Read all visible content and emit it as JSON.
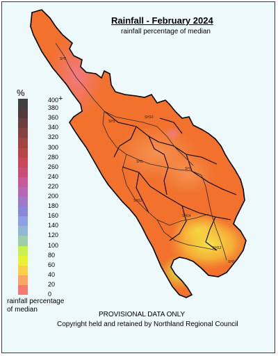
{
  "title": "Rainfall - February 2024",
  "subtitle": "rainfall percentage of median",
  "legend": {
    "unit": "%",
    "max_suffix": "+",
    "ticks": [
      "400",
      "380",
      "360",
      "340",
      "320",
      "300",
      "280",
      "260",
      "240",
      "220",
      "200",
      "180",
      "160",
      "140",
      "120",
      "100",
      "80",
      "60",
      "40",
      "20",
      "0"
    ],
    "label_line1": "rainfall percentage",
    "label_line2": "of median",
    "colors": [
      "#404040",
      "#503b3b",
      "#6a3f3f",
      "#844342",
      "#a04343",
      "#b94646",
      "#c9465a",
      "#cc4c78",
      "#c65a96",
      "#b567b6",
      "#9e77c9",
      "#8a88d6",
      "#8ea0e2",
      "#92b7d5",
      "#9ccfa9",
      "#c9ef53",
      "#e8f133",
      "#fbcf48",
      "#f8a566",
      "#f67b6f"
    ]
  },
  "road_labels": [
    "SH1",
    "SH10",
    "SH1",
    "SH1",
    "SH12",
    "SH14",
    "SH12",
    "SH1",
    "SH1"
  ],
  "provisional": "PROVISIONAL DATA ONLY",
  "copyright": "Copyright held and retained by Northland Regional Council",
  "colors": {
    "background": "#eef9fb",
    "dominant_fill": "#f1712d",
    "border": "#000000"
  }
}
